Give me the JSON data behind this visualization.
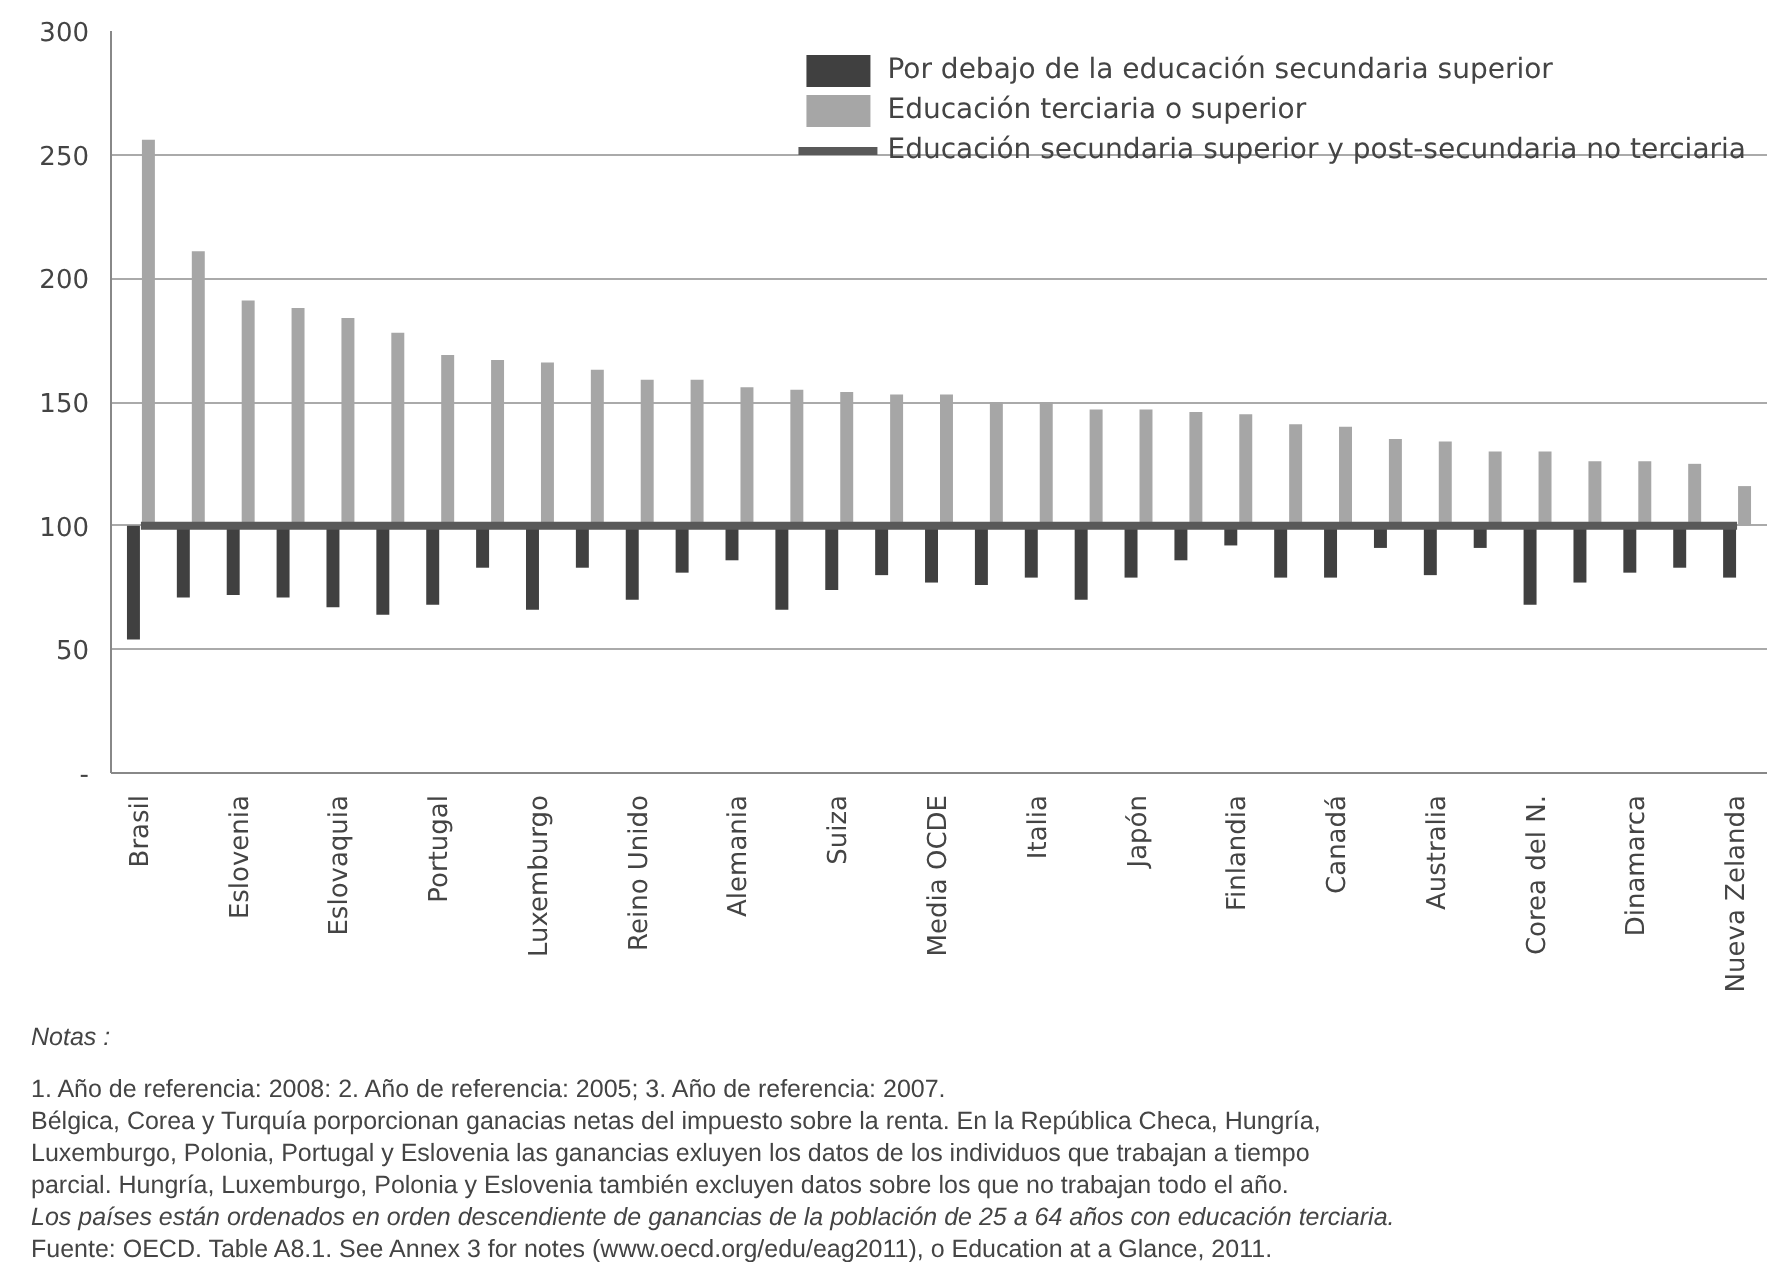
{
  "chart_data": {
    "type": "bar",
    "categories": [
      "Brasil",
      null,
      "Eslovenia",
      null,
      "Eslovaquia",
      null,
      "Portugal",
      null,
      "Luxemburgo",
      null,
      "Reino Unido",
      null,
      "Alemania",
      null,
      "Suiza",
      null,
      "Media OCDE",
      null,
      "Italia",
      null,
      "Japón",
      null,
      "Finlandia",
      null,
      "Canadá",
      null,
      "Australia",
      null,
      "Corea del N.",
      null,
      "Dinamarca",
      null,
      "Nueva Zelanda"
    ],
    "series": [
      {
        "name": "Por debajo de la educación secundaria superior",
        "color": "#404040",
        "base": [
          100,
          100,
          100,
          100,
          100,
          100,
          100,
          100,
          100,
          100,
          100,
          100,
          100,
          100,
          100,
          100,
          100,
          100,
          100,
          100,
          100,
          100,
          100,
          100,
          100,
          100,
          100,
          100,
          100,
          100,
          100,
          100,
          100
        ],
        "values": [
          -46,
          -29,
          -28,
          -29,
          -33,
          -36,
          -32,
          -17,
          -34,
          -17,
          -30,
          -19,
          -14,
          -34,
          -26,
          -20,
          -23,
          -24,
          -21,
          -30,
          -21,
          -14,
          -8,
          -21,
          -21,
          -9,
          -20,
          -9,
          -32,
          -23,
          -19,
          -17,
          -21
        ]
      },
      {
        "name": "Educación terciaria o superior",
        "color": "#a6a6a6",
        "base": [
          100,
          100,
          100,
          100,
          100,
          100,
          100,
          100,
          100,
          100,
          100,
          100,
          100,
          100,
          100,
          100,
          100,
          100,
          100,
          100,
          100,
          100,
          100,
          100,
          100,
          100,
          100,
          100,
          100,
          100,
          100,
          100,
          100
        ],
        "values": [
          156,
          111,
          91,
          88,
          84,
          78,
          69,
          67,
          66,
          63,
          59,
          59,
          56,
          55,
          54,
          53,
          53,
          50,
          50,
          47,
          47,
          46,
          45,
          41,
          40,
          35,
          34,
          30,
          30,
          26,
          26,
          25,
          16
        ]
      },
      {
        "name": "Educación secundaria superior y post-secundaria no terciaria",
        "type": "line",
        "color": "#595959",
        "values": [
          100,
          100,
          100,
          100,
          100,
          100,
          100,
          100,
          100,
          100,
          100,
          100,
          100,
          100,
          100,
          100,
          100,
          100,
          100,
          100,
          100,
          100,
          100,
          100,
          100,
          100,
          100,
          100,
          100,
          100,
          100,
          100,
          100
        ]
      }
    ],
    "ylim": [
      0,
      300
    ],
    "yticks": [
      {
        "value": 0,
        "label": "-"
      },
      50,
      100,
      150,
      200,
      250,
      300
    ],
    "grid": "y",
    "legend": "top right",
    "annotations": [
      "Notas :",
      "1. Año de referencia: 2008: 2. Año de referencia: 2005; 3. Año de referencia: 2007.",
      "Bélgica, Corea y Turquía porporcionan ganacias netas del impuesto sobre la renta. En la República Checa, Hungría,",
      "Luxemburgo, Polonia, Portugal y Eslovenia  las ganancias exluyen los datos de los individuos que trabajan a tiempo",
      "parcial. Hungría, Luxemburgo, Polonia  y Eslovenia también excluyen datos sobre los que no trabajan todo el año.",
      "Los países están ordenados en orden descendiente de ganancias de la población de 25 a 64 años con educación terciaria.",
      "Fuente:  OECD. Table A8.1. See Annex 3 for notes (www.oecd.org/edu/eag2011), o Education at a Glance, 2011."
    ]
  }
}
